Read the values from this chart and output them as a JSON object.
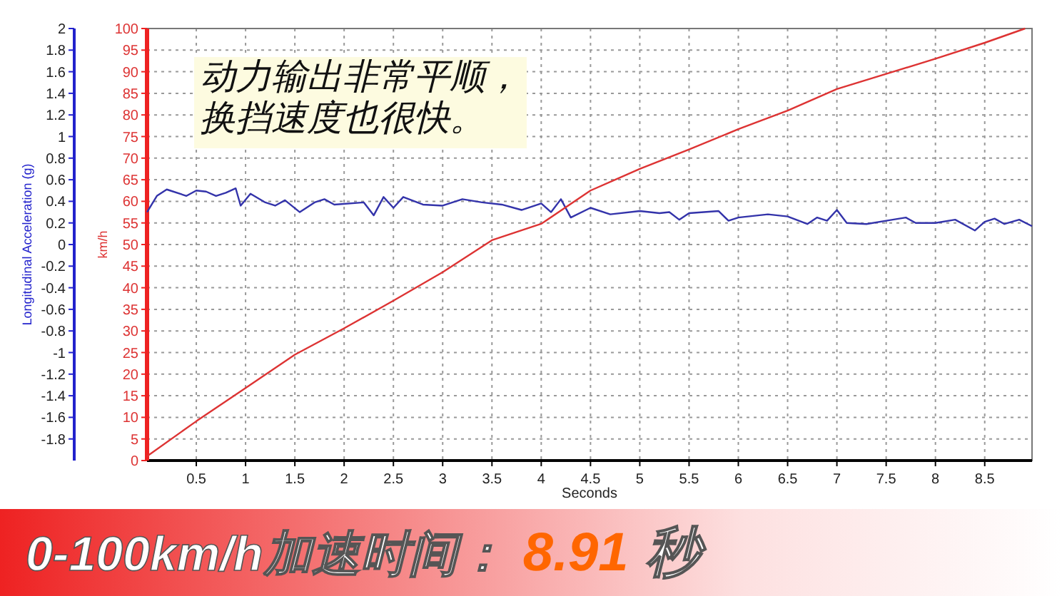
{
  "chart_data": {
    "type": "line",
    "title": "0-100km/h加速时间：",
    "subtitle": "8.91 秒",
    "annotations": [
      "动力输出非常平顺，换挡速度也很快。"
    ],
    "xlabel": "Seconds",
    "ylabel": "Longitudinal Acceleration (g)",
    "y2label": "km/h",
    "xlim": [
      0,
      8.98
    ],
    "xticks": [
      0.5,
      1,
      1.5,
      2,
      2.5,
      3,
      3.5,
      4,
      4.5,
      5,
      5.5,
      6,
      6.5,
      7,
      7.5,
      8,
      8.5
    ],
    "ylim": [
      -2,
      2
    ],
    "yticks": [
      -1.8,
      -1.6,
      -1.4,
      -1.2,
      -1,
      -0.8,
      -0.6,
      -0.4,
      -0.2,
      0,
      0.2,
      0.4,
      0.6,
      0.8,
      1,
      1.2,
      1.4,
      1.6,
      1.8,
      2
    ],
    "y2lim": [
      0,
      100
    ],
    "y2ticks": [
      0,
      5,
      10,
      15,
      20,
      25,
      30,
      35,
      40,
      45,
      50,
      55,
      60,
      65,
      70,
      75,
      80,
      85,
      90,
      95,
      100
    ],
    "grid": true,
    "marker": "none",
    "line_style": "solid",
    "series": [
      {
        "color": "#3333aa",
        "x": [
          0,
          0.1,
          0.2,
          0.4,
          0.5,
          0.6,
          0.7,
          0.8,
          0.9,
          0.95,
          1.05,
          1.2,
          1.3,
          1.4,
          1.55,
          1.7,
          1.8,
          1.9,
          2.2,
          2.3,
          2.4,
          2.5,
          2.6,
          2.8,
          3.0,
          3.2,
          3.4,
          3.6,
          3.8,
          4.0,
          4.1,
          4.2,
          4.3,
          4.5,
          4.7,
          5.0,
          5.2,
          5.3,
          5.4,
          5.5,
          5.8,
          5.9,
          6.0,
          6.3,
          6.5,
          6.7,
          6.8,
          6.9,
          7.0,
          7.1,
          7.3,
          7.5,
          7.7,
          7.8,
          8.0,
          8.2,
          8.4,
          8.5,
          8.6,
          8.7,
          8.85,
          8.98
        ],
        "values": [
          0.3,
          0.45,
          0.51,
          0.45,
          0.5,
          0.49,
          0.45,
          0.48,
          0.52,
          0.36,
          0.47,
          0.39,
          0.36,
          0.41,
          0.3,
          0.39,
          0.42,
          0.37,
          0.39,
          0.27,
          0.44,
          0.34,
          0.44,
          0.37,
          0.36,
          0.42,
          0.39,
          0.37,
          0.32,
          0.38,
          0.3,
          0.42,
          0.25,
          0.34,
          0.28,
          0.31,
          0.29,
          0.3,
          0.23,
          0.29,
          0.31,
          0.22,
          0.25,
          0.28,
          0.26,
          0.19,
          0.25,
          0.22,
          0.32,
          0.2,
          0.19,
          0.22,
          0.25,
          0.2,
          0.2,
          0.23,
          0.13,
          0.21,
          0.24,
          0.19,
          0.23,
          0.17
        ]
      },
      {
        "color": "#dd3333",
        "axis": "y2",
        "x": [
          0,
          0.5,
          1,
          1.5,
          2,
          2.5,
          3,
          3.5,
          4,
          4.5,
          5,
          5.5,
          6,
          6.5,
          7,
          7.5,
          8,
          8.5,
          8.91
        ],
        "values": [
          1,
          9.1,
          16.8,
          24.5,
          30.6,
          37,
          43.6,
          51,
          54.8,
          62.5,
          67.5,
          72,
          76.7,
          81,
          86,
          89.5,
          93,
          96.7,
          100
        ]
      }
    ]
  }
}
